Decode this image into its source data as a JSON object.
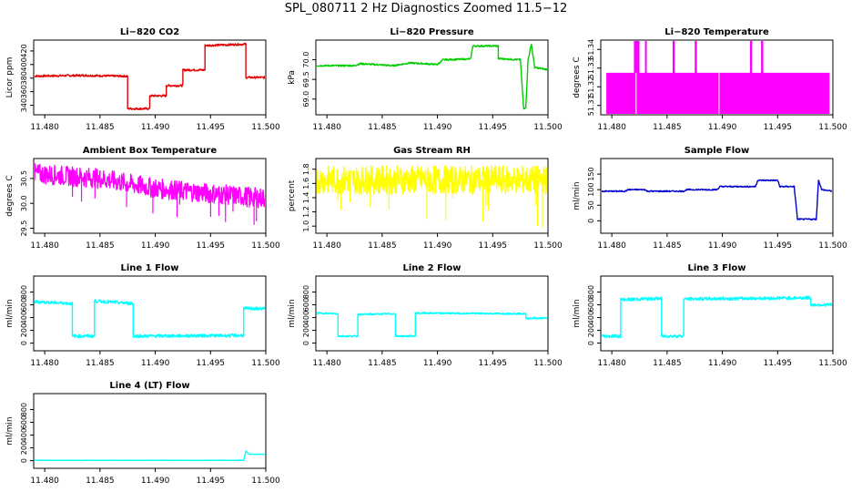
{
  "title": "SPL_080711  2 Hz Diagnostics Zoomed 11.5−12",
  "x_ticks": [
    "11.480",
    "11.485",
    "11.490",
    "11.495",
    "11.500"
  ],
  "chart_data": [
    {
      "type": "line",
      "title": "Li−820 CO2",
      "ylabel": "Licor ppm",
      "color": "#e00000",
      "xlim": [
        11.479,
        11.5
      ],
      "ylim": [
        326,
        436
      ],
      "yticks": [
        "340",
        "360",
        "380",
        "400",
        "420"
      ],
      "points": [
        [
          11.479,
          383
        ],
        [
          11.4835,
          384
        ],
        [
          11.4865,
          383
        ],
        [
          11.4875,
          383
        ],
        [
          11.4875,
          335
        ],
        [
          11.4895,
          335
        ],
        [
          11.4895,
          354
        ],
        [
          11.491,
          354
        ],
        [
          11.491,
          369
        ],
        [
          11.4925,
          369
        ],
        [
          11.4925,
          392
        ],
        [
          11.4945,
          392
        ],
        [
          11.4945,
          428
        ],
        [
          11.4982,
          430
        ],
        [
          11.4982,
          381
        ],
        [
          11.5,
          381
        ]
      ],
      "noise": 1.5
    },
    {
      "type": "line",
      "title": "Li−820 Pressure",
      "ylabel": "kPa",
      "color": "#00cc00",
      "xlim": [
        11.479,
        11.5
      ],
      "ylim": [
        68.6,
        70.5
      ],
      "yticks": [
        "69.0",
        "69.5",
        "70.0"
      ],
      "points": [
        [
          11.479,
          69.85
        ],
        [
          11.4825,
          69.85
        ],
        [
          11.483,
          69.9
        ],
        [
          11.486,
          69.85
        ],
        [
          11.4875,
          69.92
        ],
        [
          11.49,
          69.88
        ],
        [
          11.4905,
          70.0
        ],
        [
          11.493,
          70.02
        ],
        [
          11.4932,
          70.35
        ],
        [
          11.4955,
          70.35
        ],
        [
          11.4955,
          70.03
        ],
        [
          11.4975,
          70.0
        ],
        [
          11.4978,
          68.75
        ],
        [
          11.498,
          68.8
        ],
        [
          11.4982,
          70.0
        ],
        [
          11.4985,
          70.4
        ],
        [
          11.4988,
          69.8
        ],
        [
          11.5,
          69.75
        ]
      ],
      "noise": 0.02
    },
    {
      "type": "bar",
      "title": "Li−820 Temperature",
      "ylabel": "degrees C",
      "color": "#ff00ff",
      "xlim": [
        11.479,
        11.5
      ],
      "ylim": [
        51.305,
        51.345
      ],
      "yticks": [
        "51.31",
        "51.32",
        "51.33",
        "51.34"
      ],
      "points": [
        [
          11.4795,
          51.3275
        ],
        [
          11.4815,
          51.3275
        ],
        [
          11.482,
          51.348
        ],
        [
          11.4825,
          51.348
        ],
        [
          11.483,
          51.3275
        ],
        [
          11.4855,
          51.348
        ],
        [
          11.4875,
          51.348
        ],
        [
          11.4878,
          51.3275
        ],
        [
          11.4925,
          51.348
        ],
        [
          11.4935,
          51.348
        ],
        [
          11.4997,
          51.3275
        ]
      ],
      "base": 51.305
    },
    {
      "type": "line",
      "title": "Ambient Box Temperature",
      "ylabel": "degrees C",
      "color": "#ff00ff",
      "xlim": [
        11.479,
        11.5
      ],
      "ylim": [
        29.4,
        30.9
      ],
      "yticks": [
        "29.5",
        "30.0",
        "30.5"
      ],
      "points": [
        [
          11.479,
          30.6
        ],
        [
          11.485,
          30.5
        ],
        [
          11.49,
          30.3
        ],
        [
          11.495,
          30.2
        ],
        [
          11.5,
          30.1
        ]
      ],
      "noise": 0.2
    },
    {
      "type": "line",
      "title": "Gas Stream RH",
      "ylabel": "percent",
      "color": "#ffff00",
      "xlim": [
        11.479,
        11.5
      ],
      "ylim": [
        0.9,
        1.95
      ],
      "yticks": [
        "1.0",
        "1.2",
        "1.4",
        "1.6",
        "1.8"
      ],
      "points": [
        [
          11.479,
          1.65
        ],
        [
          11.5,
          1.65
        ]
      ],
      "noise": 0.2
    },
    {
      "type": "line",
      "title": "Sample Flow",
      "ylabel": "ml/min",
      "color": "#0000cc",
      "xlim": [
        11.479,
        11.5
      ],
      "ylim": [
        -40,
        200
      ],
      "yticks": [
        "0",
        "50",
        "100",
        "150"
      ],
      "points": [
        [
          11.479,
          95
        ],
        [
          11.4812,
          95
        ],
        [
          11.4815,
          100
        ],
        [
          11.483,
          100
        ],
        [
          11.4832,
          95
        ],
        [
          11.4865,
          95
        ],
        [
          11.4868,
          100
        ],
        [
          11.4895,
          100
        ],
        [
          11.4898,
          110
        ],
        [
          11.493,
          110
        ],
        [
          11.4932,
          130
        ],
        [
          11.495,
          130
        ],
        [
          11.4952,
          110
        ],
        [
          11.4965,
          110
        ],
        [
          11.4968,
          5
        ],
        [
          11.4985,
          5
        ],
        [
          11.4987,
          130
        ],
        [
          11.499,
          100
        ],
        [
          11.5,
          95
        ]
      ],
      "noise": 2
    },
    {
      "type": "line",
      "title": "Line 1 Flow",
      "ylabel": "ml/min",
      "color": "#00ffff",
      "xlim": [
        11.479,
        11.5
      ],
      "ylim": [
        -120,
        1050
      ],
      "yticks": [
        "0",
        "200",
        "400",
        "600",
        "800"
      ],
      "points": [
        [
          11.479,
          650
        ],
        [
          11.4825,
          620
        ],
        [
          11.4825,
          110
        ],
        [
          11.4845,
          110
        ],
        [
          11.4845,
          660
        ],
        [
          11.488,
          620
        ],
        [
          11.488,
          110
        ],
        [
          11.498,
          120
        ],
        [
          11.498,
          540
        ],
        [
          11.5,
          540
        ]
      ],
      "noise": 25
    },
    {
      "type": "line",
      "title": "Line 2 Flow",
      "ylabel": "ml/min",
      "color": "#00ffff",
      "xlim": [
        11.479,
        11.5
      ],
      "ylim": [
        -120,
        1050
      ],
      "yticks": [
        "0",
        "200",
        "400",
        "600",
        "800"
      ],
      "points": [
        [
          11.479,
          470
        ],
        [
          11.481,
          460
        ],
        [
          11.481,
          110
        ],
        [
          11.4828,
          110
        ],
        [
          11.4828,
          450
        ],
        [
          11.4862,
          460
        ],
        [
          11.4862,
          110
        ],
        [
          11.488,
          110
        ],
        [
          11.488,
          470
        ],
        [
          11.498,
          460
        ],
        [
          11.498,
          390
        ],
        [
          11.5,
          390
        ]
      ],
      "noise": 12
    },
    {
      "type": "line",
      "title": "Line 3 Flow",
      "ylabel": "ml/min",
      "color": "#00ffff",
      "xlim": [
        11.479,
        11.5
      ],
      "ylim": [
        -120,
        1050
      ],
      "yticks": [
        "0",
        "200",
        "400",
        "600",
        "800"
      ],
      "points": [
        [
          11.479,
          110
        ],
        [
          11.4808,
          110
        ],
        [
          11.4808,
          680
        ],
        [
          11.4845,
          700
        ],
        [
          11.4845,
          110
        ],
        [
          11.4865,
          110
        ],
        [
          11.4865,
          690
        ],
        [
          11.498,
          710
        ],
        [
          11.498,
          600
        ],
        [
          11.5,
          600
        ]
      ],
      "noise": 25
    },
    {
      "type": "line",
      "title": "Line 4 (LT) Flow",
      "ylabel": "ml/min",
      "color": "#00ffff",
      "xlim": [
        11.479,
        11.5
      ],
      "ylim": [
        -120,
        1050
      ],
      "yticks": [
        "0",
        "200",
        "400",
        "600",
        "800"
      ],
      "points": [
        [
          11.479,
          5
        ],
        [
          11.498,
          5
        ],
        [
          11.4982,
          150
        ],
        [
          11.4985,
          100
        ],
        [
          11.5,
          100
        ]
      ],
      "noise": 2
    }
  ]
}
